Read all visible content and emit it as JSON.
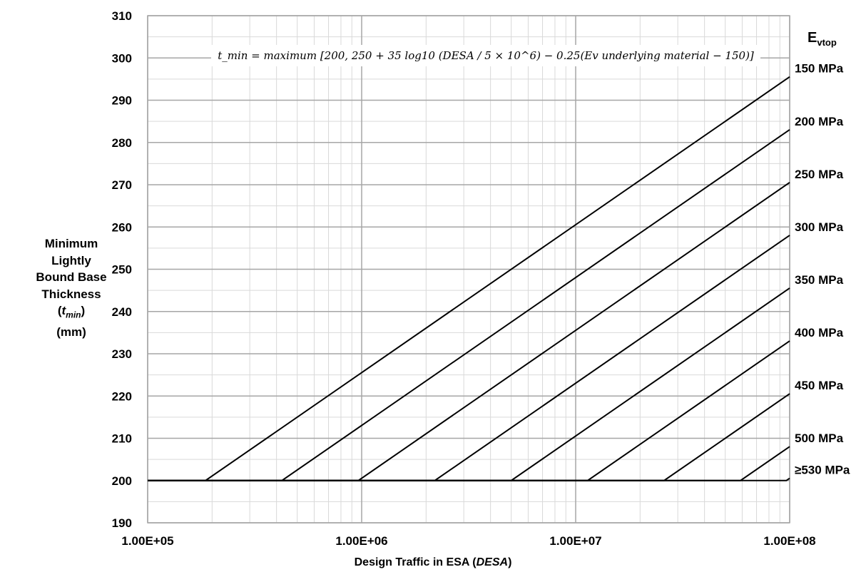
{
  "chart_data": {
    "type": "line",
    "title": "",
    "formula": "t_min = maximum [200, 250 + 35 log10 (DESA / 5 × 10^6) − 0.25(Ev underlying material − 150)]",
    "xlabel": {
      "pre": "Design Traffic in ESA (",
      "var": "DESA",
      "post": ")"
    },
    "ylabel": {
      "line1": "Minimum",
      "line2": "Lightly",
      "line3": "Bound Base",
      "line4": "Thickness",
      "line5": {
        "pre": "(",
        "var": "t",
        "sub": "min",
        "post": ")"
      },
      "line6": "(mm)"
    },
    "legend_title": {
      "main": "E",
      "sub": "vtop"
    },
    "x_scale": "log",
    "xlim": [
      100000,
      100000000
    ],
    "ylim": [
      190,
      310
    ],
    "x_ticks": [
      {
        "value": 100000,
        "label": "1.00E+05"
      },
      {
        "value": 1000000,
        "label": "1.00E+06"
      },
      {
        "value": 10000000,
        "label": "1.00E+07"
      },
      {
        "value": 100000000,
        "label": "1.00E+08"
      }
    ],
    "y_ticks": [
      190,
      200,
      210,
      220,
      230,
      240,
      250,
      260,
      270,
      280,
      290,
      300,
      310
    ],
    "grid": true,
    "minimum_thickness": 200,
    "series": [
      {
        "name": "150 MPa",
        "ev": 150
      },
      {
        "name": "200 MPa",
        "ev": 200
      },
      {
        "name": "250 MPa",
        "ev": 250
      },
      {
        "name": "300 MPa",
        "ev": 300
      },
      {
        "name": "350 MPa",
        "ev": 350
      },
      {
        "name": "400 MPa",
        "ev": 400
      },
      {
        "name": "450 MPa",
        "ev": 450
      },
      {
        "name": "500 MPa",
        "ev": 500
      },
      {
        "name": "≥530 MPa",
        "ev": 530
      }
    ]
  }
}
